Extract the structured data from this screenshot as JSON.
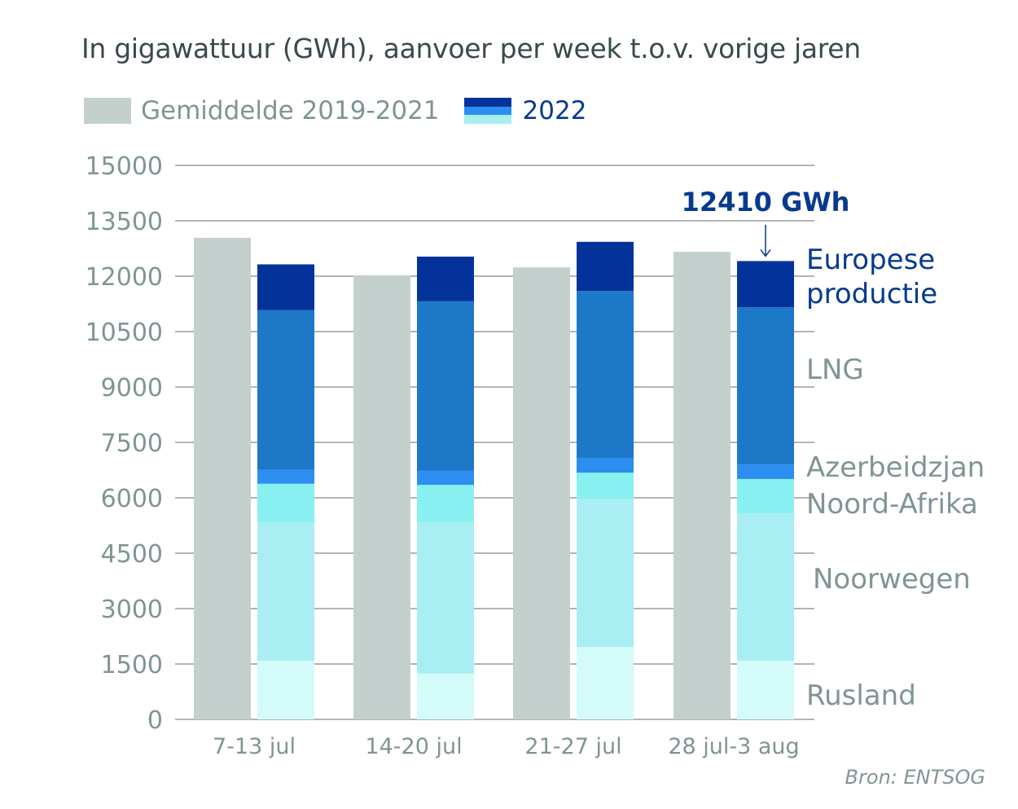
{
  "chart_data": {
    "type": "bar",
    "title": "In gigawattuur (GWh), aanvoer per week t.o.v. vorige jaren",
    "xlabel": "",
    "ylabel": "",
    "ylim": [
      0,
      15000
    ],
    "yticks": [
      0,
      1500,
      3000,
      4500,
      6000,
      7500,
      9000,
      10500,
      12000,
      13500,
      15000
    ],
    "ytick_labels": [
      "0",
      "1500",
      "3000",
      "4500",
      "6000",
      "7500",
      "9000",
      "10500",
      "12000",
      "13500",
      "15000"
    ],
    "grid": true,
    "categories": [
      "7-13 jul",
      "14-20 jul",
      "21-27 jul",
      "28 jul-3 aug"
    ],
    "legend": {
      "placement": "top-left",
      "entries": [
        {
          "name": "Gemiddelde 2019-2021",
          "color": "#c4d0cd"
        },
        {
          "name": "2022",
          "colors": [
            "#03339a",
            "#2b8ef0",
            "#a8eef3"
          ]
        }
      ]
    },
    "average_series": {
      "name": "Gemiddelde 2019-2021",
      "color": "#c4d0cd",
      "values": [
        13040,
        12020,
        12240,
        12660
      ]
    },
    "stacked_series_2022": [
      {
        "name": "Rusland",
        "color": "#d3fbf9",
        "values": [
          1590,
          1240,
          1960,
          1590
        ]
      },
      {
        "name": "Noorwegen",
        "color": "#a8eef3",
        "values": [
          3750,
          4100,
          4020,
          3990
        ]
      },
      {
        "name": "Noord-Afrika",
        "color": "#88f0f0",
        "values": [
          1040,
          1010,
          700,
          930
        ]
      },
      {
        "name": "Azerbeidzjan",
        "color": "#2b8ef0",
        "values": [
          380,
          380,
          400,
          390
        ]
      },
      {
        "name": "LNG",
        "color": "#1e78c8",
        "values": [
          4320,
          4590,
          4520,
          4260
        ]
      },
      {
        "name": "Europese productie",
        "color": "#03339a",
        "values": [
          1240,
          1210,
          1330,
          1250
        ]
      }
    ],
    "series_labels": [
      {
        "text": "Rusland",
        "color": "grey"
      },
      {
        "text": "Noorwegen",
        "color": "grey"
      },
      {
        "text": "Noord-Afrika",
        "color": "grey"
      },
      {
        "text": "Azerbeidzjan",
        "color": "grey"
      },
      {
        "text": "LNG",
        "color": "grey"
      },
      {
        "text": "Europese productie",
        "lines": [
          "Europese",
          "productie"
        ],
        "color": "blue"
      }
    ],
    "annotations": [
      {
        "text": "12410 GWh",
        "category": "28 jul-3 aug",
        "value": 12410,
        "arrow": "down"
      }
    ]
  },
  "legend": {
    "grey_label": "Gemiddelde 2019-2021",
    "blue_label": "2022"
  },
  "source": "Bron: ENTSOG"
}
